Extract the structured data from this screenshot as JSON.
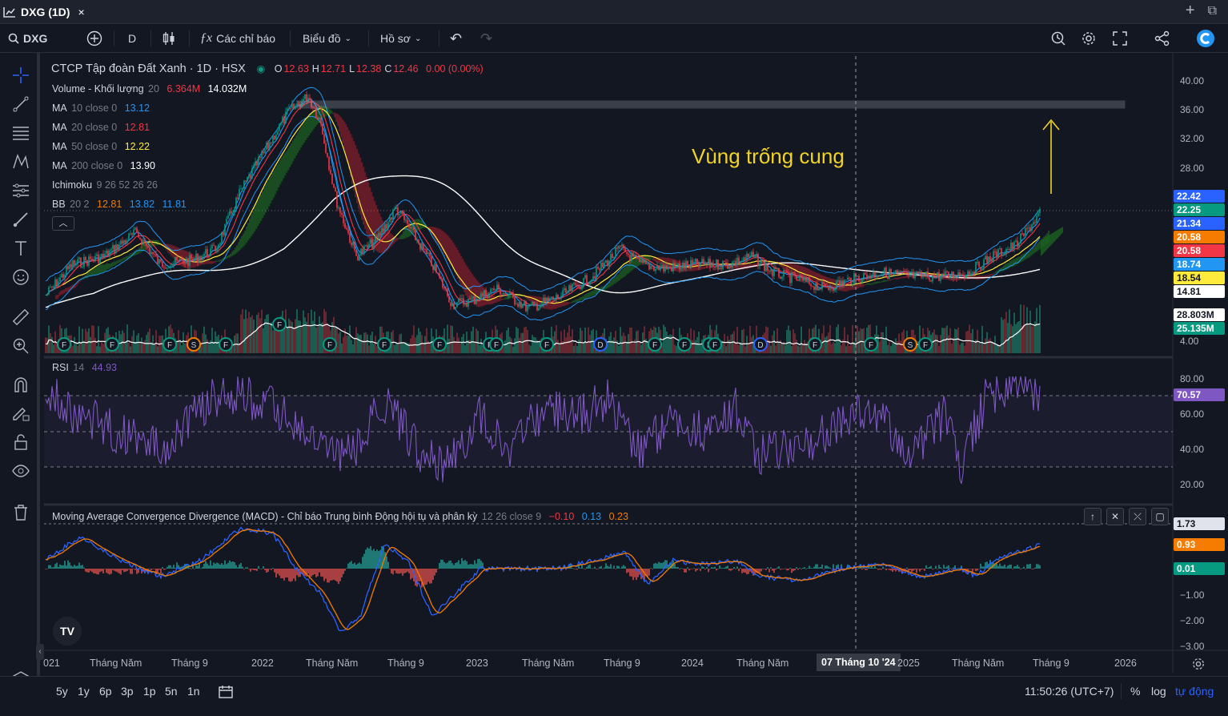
{
  "tab": {
    "title": "DXG (1D)",
    "close": "×"
  },
  "window": {
    "new_tab": "+",
    "restore": "⧉"
  },
  "toolbar": {
    "symbol": "DXG",
    "interval": "D",
    "indicators_label": "Các chỉ báo",
    "chart_type_label": "Biểu đồ",
    "profile_label": "Hồ sơ"
  },
  "legend": {
    "title": "CTCP Tập đoàn Đất Xanh · 1D · HSX",
    "ohlc": [
      {
        "k": "O",
        "v": "12.63"
      },
      {
        "k": "H",
        "v": "12.71"
      },
      {
        "k": "L",
        "v": "12.38"
      },
      {
        "k": "C",
        "v": "12.46"
      }
    ],
    "change": "0.00 (0.00%)",
    "volume_name": "Volume - Khối lượng",
    "volume_len": "20",
    "volume_v1": "6.364M",
    "volume_v2": "14.032M",
    "ma10_name": "MA",
    "ma10_params": "10 close 0",
    "ma10_val": "13.12",
    "ma20_name": "MA",
    "ma20_params": "20 close 0",
    "ma20_val": "12.81",
    "ma50_name": "MA",
    "ma50_params": "50 close 0",
    "ma50_val": "12.22",
    "ma200_name": "MA",
    "ma200_params": "200 close 0",
    "ma200_val": "13.90",
    "ichi_name": "Ichimoku",
    "ichi_params": "9 26 52 26 26",
    "bb_name": "BB",
    "bb_params": "20 2",
    "bb_v1": "12.81",
    "bb_v2": "13.82",
    "bb_v3": "11.81",
    "rsi_name": "RSI",
    "rsi_len": "14",
    "rsi_val": "44.93",
    "macd_name": "Moving Average Convergence Divergence (MACD) - Chỉ báo Trung bình Động hội tụ và phân kỳ",
    "macd_params": "12 26 close 9",
    "macd_v1": "−0.10",
    "macd_v2": "0.13",
    "macd_v3": "0.23"
  },
  "annotation": "Vùng trống cung",
  "price_axis": [
    "40.00",
    "36.00",
    "32.00",
    "28.00",
    "4.00"
  ],
  "rsi_axis": [
    "80.00",
    "60.00",
    "40.00",
    "20.00"
  ],
  "macd_axis": [
    "−1.00",
    "−2.00",
    "−3.00"
  ],
  "price_labels": [
    {
      "v": "22.42",
      "bg": "#2962ff",
      "fg": "#ffffff"
    },
    {
      "v": "22.25",
      "bg": "#089981",
      "fg": "#ffffff"
    },
    {
      "v": "21.34",
      "bg": "#2962ff",
      "fg": "#ffffff"
    },
    {
      "v": "20.58",
      "bg": "#f57c00",
      "fg": "#ffffff"
    },
    {
      "v": "20.58",
      "bg": "#f23645",
      "fg": "#ffffff"
    },
    {
      "v": "18.74",
      "bg": "#2196f3",
      "fg": "#ffffff"
    },
    {
      "v": "18.54",
      "bg": "#ffeb3b",
      "fg": "#131722"
    },
    {
      "v": "14.81",
      "bg": "#ffffff",
      "fg": "#131722"
    },
    {
      "v": "28.803M",
      "bg": "#ffffff",
      "fg": "#131722"
    },
    {
      "v": "25.135M",
      "bg": "#089981",
      "fg": "#ffffff"
    }
  ],
  "rsi_label": {
    "v": "70.57",
    "bg": "#7e57c2",
    "fg": "#ffffff"
  },
  "macd_labels": [
    {
      "v": "1.73",
      "bg": "#e0e3eb",
      "fg": "#131722"
    },
    {
      "v": "0.93",
      "bg": "#f57c00",
      "fg": "#ffffff"
    },
    {
      "v": "0.01",
      "bg": "#089981",
      "fg": "#ffffff"
    }
  ],
  "x_axis": [
    "021",
    "Tháng Năm",
    "Tháng 9",
    "2022",
    "Tháng Năm",
    "Tháng 9",
    "2023",
    "Tháng Năm",
    "Tháng 9",
    "2024",
    "Tháng Năm",
    "07 Tháng 10 '24",
    "2025",
    "Tháng Năm",
    "Tháng 9",
    "2026"
  ],
  "events": [
    "F",
    "F",
    "F",
    "S",
    "F",
    "F",
    "F",
    "F",
    "F",
    "F",
    "F",
    "F",
    "D",
    "F",
    "F",
    "F",
    "F",
    "D",
    "F",
    "F",
    "S",
    "F"
  ],
  "ranges": [
    "5y",
    "1y",
    "6p",
    "3p",
    "1p",
    "5n",
    "1n"
  ],
  "bottom": {
    "clock": "11:50:26 (UTC+7)",
    "percent": "%",
    "log": "log",
    "auto": "tự động"
  },
  "colors": {
    "up": "#089981",
    "down": "#f23645",
    "ma10": "#2196f3",
    "ma20": "#f23645",
    "ma50": "#ffeb3b",
    "ma200": "#ffffff",
    "rsi": "#7e57c2",
    "macd": "#2962ff",
    "signal": "#f57c00"
  }
}
